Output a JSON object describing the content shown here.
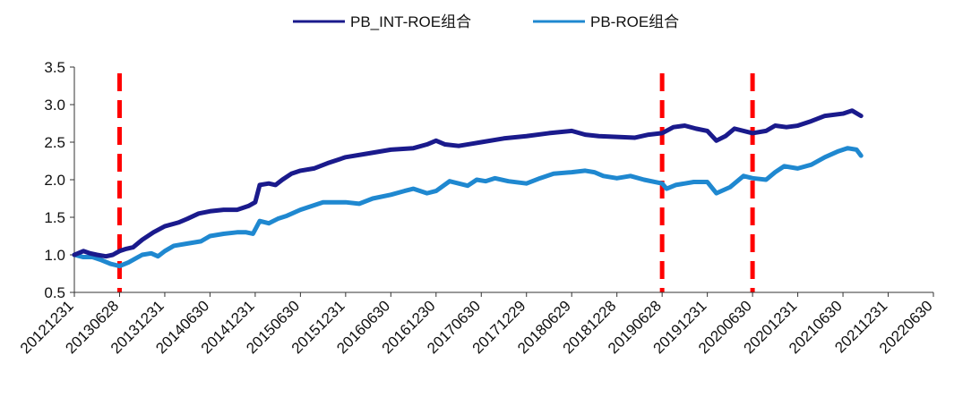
{
  "chart_data": {
    "type": "line",
    "title": "",
    "xlabel": "",
    "ylabel": "",
    "ylim": [
      0.5,
      3.5
    ],
    "yticks": [
      "0.5",
      "1.0",
      "1.5",
      "2.0",
      "2.5",
      "3.0",
      "3.5"
    ],
    "xtick_labels": [
      "20121231",
      "20130628",
      "20131231",
      "20140630",
      "20141231",
      "20150630",
      "20151231",
      "20160630",
      "20161230",
      "20170630",
      "20171229",
      "20180629",
      "20181228",
      "20190628",
      "20191231",
      "20200630",
      "20201231",
      "20210630",
      "20211231",
      "20220630"
    ],
    "legend_position": "top",
    "grid": false,
    "vlines": [
      {
        "x": "20130628",
        "style": "dashed",
        "color": "#ff0000"
      },
      {
        "x": "20190628",
        "style": "dashed",
        "color": "#ff0000"
      },
      {
        "x": "20200630",
        "style": "dashed",
        "color": "#ff0000"
      }
    ],
    "series": [
      {
        "name": "PB_INT-ROE组合",
        "color": "#1a1a8c",
        "points": [
          [
            0.0,
            1.0
          ],
          [
            0.2,
            1.05
          ],
          [
            0.35,
            1.02
          ],
          [
            0.5,
            1.0
          ],
          [
            0.7,
            0.98
          ],
          [
            0.85,
            1.0
          ],
          [
            1.0,
            1.05
          ],
          [
            1.15,
            1.08
          ],
          [
            1.3,
            1.1
          ],
          [
            1.5,
            1.2
          ],
          [
            1.75,
            1.3
          ],
          [
            2.0,
            1.38
          ],
          [
            2.3,
            1.43
          ],
          [
            2.5,
            1.48
          ],
          [
            2.75,
            1.55
          ],
          [
            3.0,
            1.58
          ],
          [
            3.3,
            1.6
          ],
          [
            3.6,
            1.6
          ],
          [
            3.85,
            1.65
          ],
          [
            4.0,
            1.7
          ],
          [
            4.1,
            1.93
          ],
          [
            4.3,
            1.95
          ],
          [
            4.45,
            1.93
          ],
          [
            4.6,
            2.0
          ],
          [
            4.8,
            2.08
          ],
          [
            5.0,
            2.12
          ],
          [
            5.3,
            2.15
          ],
          [
            5.6,
            2.22
          ],
          [
            6.0,
            2.3
          ],
          [
            6.5,
            2.35
          ],
          [
            7.0,
            2.4
          ],
          [
            7.5,
            2.42
          ],
          [
            7.8,
            2.47
          ],
          [
            8.0,
            2.52
          ],
          [
            8.2,
            2.47
          ],
          [
            8.5,
            2.45
          ],
          [
            8.8,
            2.48
          ],
          [
            9.0,
            2.5
          ],
          [
            9.5,
            2.55
          ],
          [
            10.0,
            2.58
          ],
          [
            10.5,
            2.62
          ],
          [
            11.0,
            2.65
          ],
          [
            11.3,
            2.6
          ],
          [
            11.6,
            2.58
          ],
          [
            12.0,
            2.57
          ],
          [
            12.4,
            2.56
          ],
          [
            12.7,
            2.6
          ],
          [
            13.0,
            2.62
          ],
          [
            13.25,
            2.7
          ],
          [
            13.5,
            2.72
          ],
          [
            13.75,
            2.68
          ],
          [
            14.0,
            2.65
          ],
          [
            14.2,
            2.52
          ],
          [
            14.4,
            2.58
          ],
          [
            14.6,
            2.68
          ],
          [
            15.0,
            2.62
          ],
          [
            15.3,
            2.65
          ],
          [
            15.5,
            2.72
          ],
          [
            15.75,
            2.7
          ],
          [
            16.0,
            2.72
          ],
          [
            16.3,
            2.78
          ],
          [
            16.6,
            2.85
          ],
          [
            17.0,
            2.88
          ],
          [
            17.2,
            2.92
          ],
          [
            17.4,
            2.85
          ]
        ]
      },
      {
        "name": "PB-ROE组合",
        "color": "#1f88d0",
        "points": [
          [
            0.0,
            1.0
          ],
          [
            0.2,
            0.97
          ],
          [
            0.4,
            0.97
          ],
          [
            0.6,
            0.93
          ],
          [
            0.8,
            0.88
          ],
          [
            1.0,
            0.85
          ],
          [
            1.2,
            0.9
          ],
          [
            1.35,
            0.95
          ],
          [
            1.5,
            1.0
          ],
          [
            1.7,
            1.02
          ],
          [
            1.85,
            0.98
          ],
          [
            2.0,
            1.05
          ],
          [
            2.2,
            1.12
          ],
          [
            2.5,
            1.15
          ],
          [
            2.8,
            1.18
          ],
          [
            3.0,
            1.25
          ],
          [
            3.3,
            1.28
          ],
          [
            3.6,
            1.3
          ],
          [
            3.8,
            1.3
          ],
          [
            3.95,
            1.28
          ],
          [
            4.1,
            1.45
          ],
          [
            4.3,
            1.42
          ],
          [
            4.5,
            1.48
          ],
          [
            4.7,
            1.52
          ],
          [
            5.0,
            1.6
          ],
          [
            5.5,
            1.7
          ],
          [
            6.0,
            1.7
          ],
          [
            6.3,
            1.68
          ],
          [
            6.6,
            1.75
          ],
          [
            7.0,
            1.8
          ],
          [
            7.3,
            1.85
          ],
          [
            7.5,
            1.88
          ],
          [
            7.8,
            1.82
          ],
          [
            8.0,
            1.85
          ],
          [
            8.3,
            1.98
          ],
          [
            8.5,
            1.95
          ],
          [
            8.7,
            1.92
          ],
          [
            8.9,
            2.0
          ],
          [
            9.1,
            1.98
          ],
          [
            9.3,
            2.02
          ],
          [
            9.6,
            1.98
          ],
          [
            10.0,
            1.95
          ],
          [
            10.3,
            2.02
          ],
          [
            10.6,
            2.08
          ],
          [
            11.0,
            2.1
          ],
          [
            11.3,
            2.12
          ],
          [
            11.5,
            2.1
          ],
          [
            11.7,
            2.05
          ],
          [
            12.0,
            2.02
          ],
          [
            12.3,
            2.05
          ],
          [
            12.6,
            2.0
          ],
          [
            13.0,
            1.95
          ],
          [
            13.1,
            1.88
          ],
          [
            13.3,
            1.93
          ],
          [
            13.7,
            1.97
          ],
          [
            14.0,
            1.97
          ],
          [
            14.2,
            1.82
          ],
          [
            14.5,
            1.9
          ],
          [
            14.8,
            2.05
          ],
          [
            15.0,
            2.02
          ],
          [
            15.3,
            2.0
          ],
          [
            15.5,
            2.1
          ],
          [
            15.7,
            2.18
          ],
          [
            16.0,
            2.15
          ],
          [
            16.3,
            2.2
          ],
          [
            16.6,
            2.3
          ],
          [
            16.9,
            2.38
          ],
          [
            17.1,
            2.42
          ],
          [
            17.3,
            2.4
          ],
          [
            17.4,
            2.32
          ]
        ]
      }
    ]
  }
}
